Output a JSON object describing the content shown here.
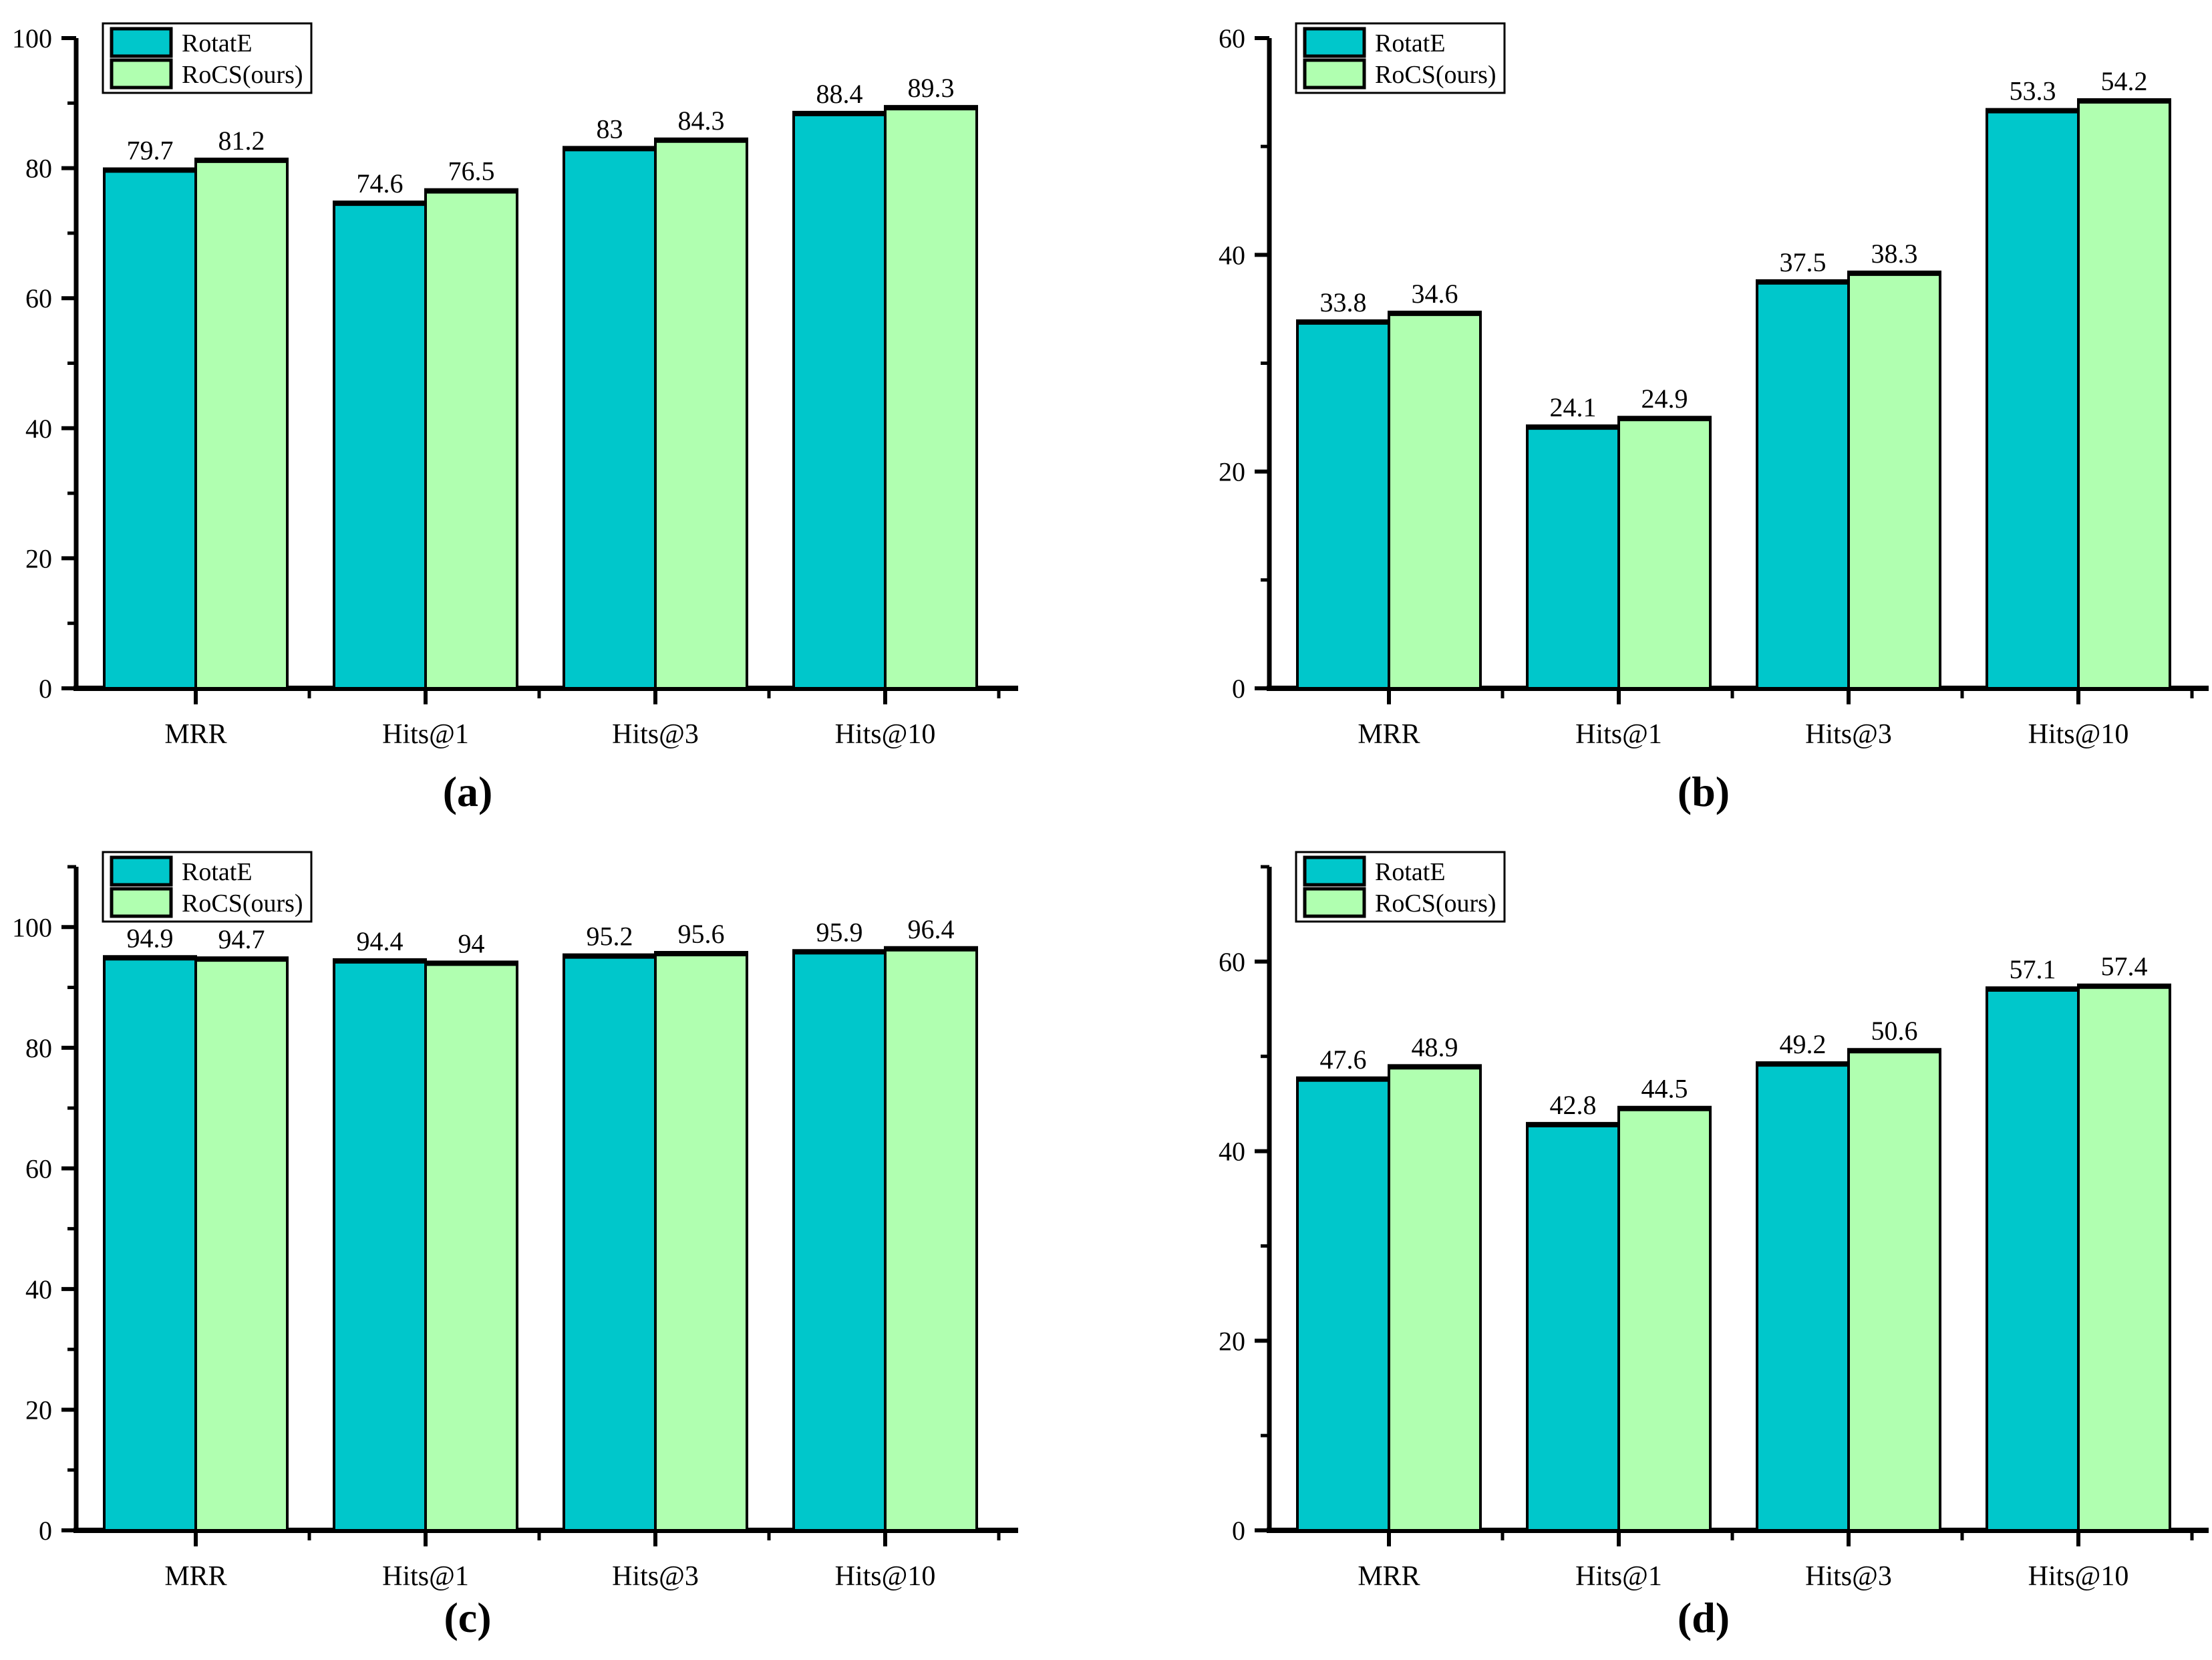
{
  "figure": {
    "description": "Four grouped bar charts comparing RotatE and RoCS(ours) on MRR, Hits@1, Hits@3, Hits@10"
  },
  "colors": {
    "rotate_fill": "#00c7cb",
    "rocs_fill": "#b0ffb0",
    "bar_border": "#000000",
    "axis": "#000000",
    "legend_bg": "#ffffff"
  },
  "legend": {
    "items": [
      {
        "label": "RotatE",
        "color_key": "rotate_fill"
      },
      {
        "label": "RoCS(ours)",
        "color_key": "rocs_fill"
      }
    ]
  },
  "chart_data": [
    {
      "id": "a",
      "caption": "(a)",
      "type": "bar",
      "categories": [
        "MRR",
        "Hits@1",
        "Hits@3",
        "Hits@10"
      ],
      "series": [
        {
          "name": "RotatE",
          "values": [
            79.7,
            74.6,
            83,
            88.4
          ]
        },
        {
          "name": "RoCS(ours)",
          "values": [
            81.2,
            76.5,
            84.3,
            89.3
          ]
        }
      ],
      "ylim": [
        0,
        100
      ],
      "axis_top": 100,
      "yticks": [
        0,
        20,
        40,
        60,
        80,
        100
      ],
      "minor_step": 10,
      "grid": false,
      "legend_position": "top-left"
    },
    {
      "id": "b",
      "caption": "(b)",
      "type": "bar",
      "categories": [
        "MRR",
        "Hits@1",
        "Hits@3",
        "Hits@10"
      ],
      "series": [
        {
          "name": "RotatE",
          "values": [
            33.8,
            24.1,
            37.5,
            53.3
          ]
        },
        {
          "name": "RoCS(ours)",
          "values": [
            34.6,
            24.9,
            38.3,
            54.2
          ]
        }
      ],
      "ylim": [
        0,
        60
      ],
      "axis_top": 60,
      "yticks": [
        0,
        20,
        40,
        60
      ],
      "minor_step": 10,
      "grid": false,
      "legend_position": "top-left"
    },
    {
      "id": "c",
      "caption": "(c)",
      "type": "bar",
      "categories": [
        "MRR",
        "Hits@1",
        "Hits@3",
        "Hits@10"
      ],
      "series": [
        {
          "name": "RotatE",
          "values": [
            94.9,
            94.4,
            95.2,
            95.9
          ]
        },
        {
          "name": "RoCS(ours)",
          "values": [
            94.7,
            94,
            95.6,
            96.4
          ]
        }
      ],
      "ylim": [
        0,
        110
      ],
      "axis_top": 110,
      "yticks": [
        0,
        20,
        40,
        60,
        80,
        100
      ],
      "minor_step": 10,
      "grid": false,
      "legend_position": "top-left"
    },
    {
      "id": "d",
      "caption": "(d)",
      "type": "bar",
      "categories": [
        "MRR",
        "Hits@1",
        "Hits@3",
        "Hits@10"
      ],
      "series": [
        {
          "name": "RotatE",
          "values": [
            47.6,
            42.8,
            49.2,
            57.1
          ]
        },
        {
          "name": "RoCS(ours)",
          "values": [
            48.9,
            44.5,
            50.6,
            57.4
          ]
        }
      ],
      "ylim": [
        0,
        70
      ],
      "axis_top": 70,
      "yticks": [
        0,
        20,
        40,
        60
      ],
      "minor_step": 10,
      "grid": false,
      "legend_position": "top-left"
    }
  ]
}
